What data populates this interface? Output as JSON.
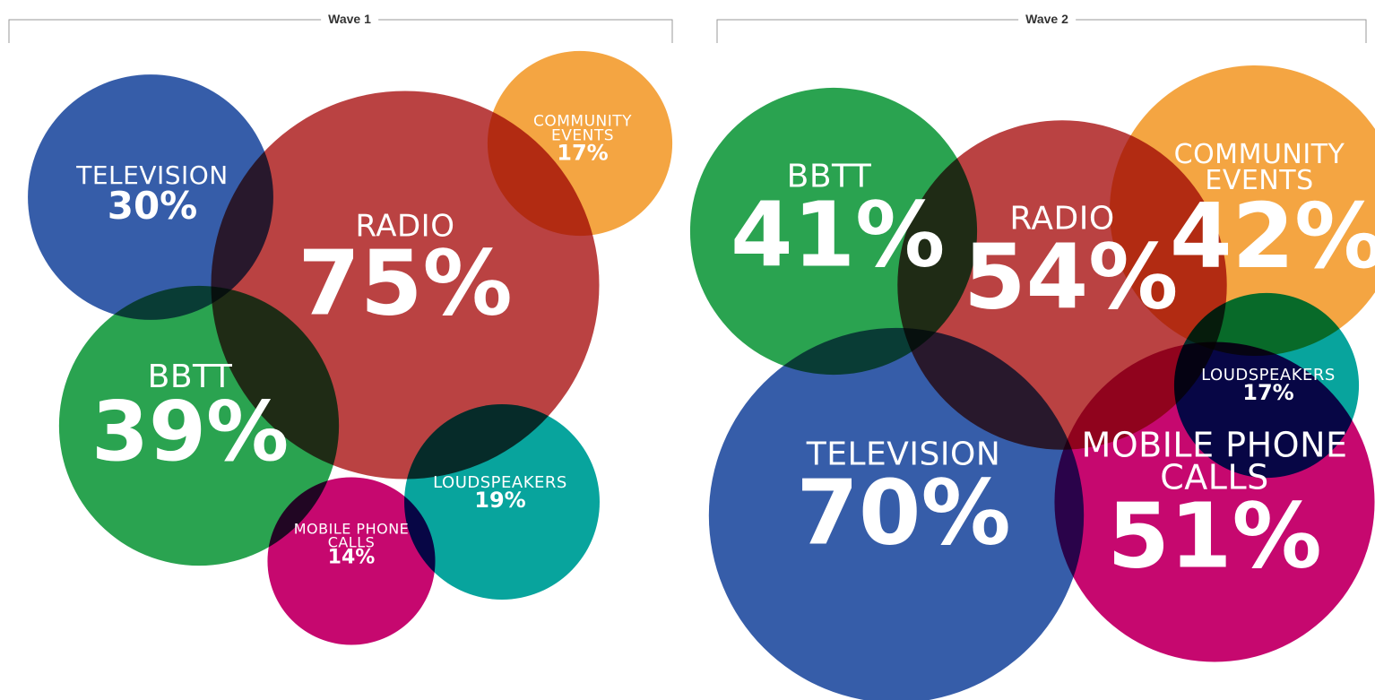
{
  "chart_data": [
    {
      "type": "bubble",
      "title": "Wave 1",
      "categories": [
        "TELEVISION",
        "RADIO",
        "COMMUNITY EVENTS",
        "BBTT",
        "MOBILE PHONE CALLS",
        "LOUDSPEAKERS"
      ],
      "values": [
        30,
        75,
        17,
        39,
        14,
        19
      ],
      "value_labels": [
        "30%",
        "75%",
        "17%",
        "39%",
        "14%",
        "19%"
      ],
      "colors": [
        "#2f58a6",
        "#b83c3c",
        "#f4a23c",
        "#23a04a",
        "#c4006a",
        "#00a19a"
      ]
    },
    {
      "type": "bubble",
      "title": "Wave 2",
      "categories": [
        "BBTT",
        "RADIO",
        "COMMUNITY EVENTS",
        "TELEVISION",
        "MOBILE PHONE CALLS",
        "LOUDSPEAKERS"
      ],
      "values": [
        41,
        54,
        42,
        70,
        51,
        17
      ],
      "value_labels": [
        "41%",
        "54%",
        "42%",
        "70%",
        "51%",
        "17%"
      ],
      "colors": [
        "#23a04a",
        "#b83c3c",
        "#f4a23c",
        "#2f58a6",
        "#c4006a",
        "#00a19a"
      ]
    }
  ]
}
